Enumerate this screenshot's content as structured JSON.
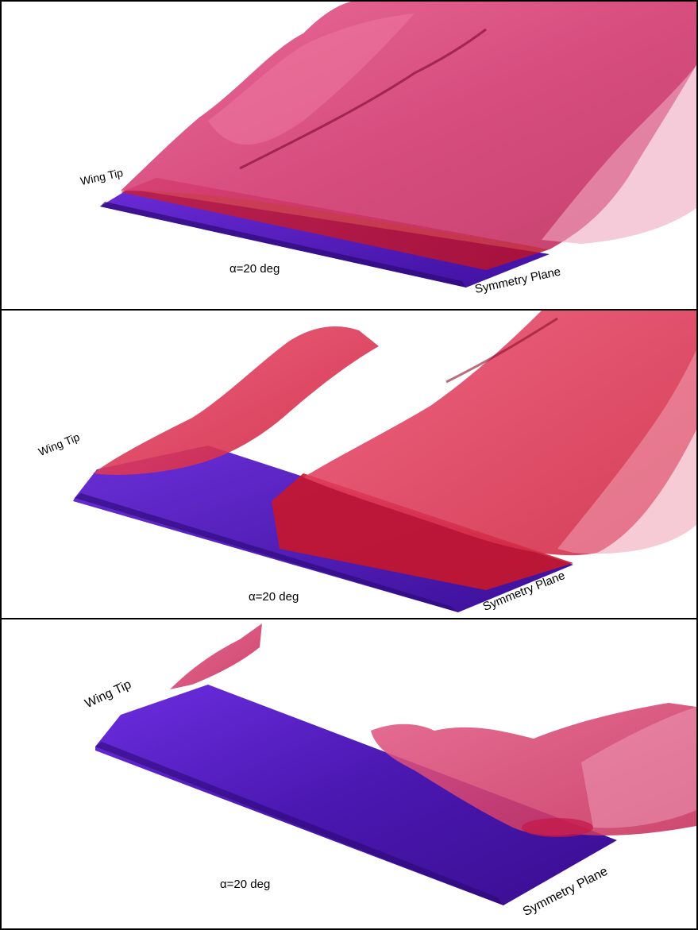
{
  "panels": [
    {
      "wing_tip_label": "Wing Tip",
      "symmetry_plane_label": "Symmetry Plane",
      "alpha_label": "α=20 deg"
    },
    {
      "wing_tip_label": "Wing Tip",
      "symmetry_plane_label": "Symmetry Plane",
      "alpha_label": "α=20 deg"
    },
    {
      "wing_tip_label": "Wing Tip",
      "symmetry_plane_label": "Symmetry Plane",
      "alpha_label": "α=20 deg"
    }
  ],
  "colors": {
    "wing_surface": "#5a23c8",
    "wing_surface_dark": "#3a0e8e",
    "separated_flow": "#d9245a",
    "separated_flow_light": "#f06a96",
    "vortex_isosurface": "#e23f72",
    "frame": "#000000"
  }
}
